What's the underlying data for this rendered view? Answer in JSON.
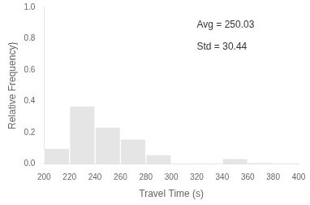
{
  "chart_data": {
    "type": "histogram",
    "bins": [
      200,
      220,
      240,
      260,
      280,
      300,
      320,
      340,
      360,
      380,
      400
    ],
    "values": [
      0.1,
      0.37,
      0.235,
      0.16,
      0.06,
      0.004,
      0.004,
      0.035,
      0.008,
      0.0
    ],
    "xlabel": "Travel Time (s)",
    "ylabel": "Relative Frequency}",
    "xlim": [
      200,
      400
    ],
    "ylim": [
      0,
      1.0
    ],
    "xticks": [
      200,
      220,
      240,
      260,
      280,
      300,
      320,
      340,
      360,
      380,
      400
    ],
    "yticks": [
      {
        "value": 0.0,
        "label": "0.0"
      },
      0.2,
      0.4,
      0.6,
      0.8,
      {
        "value": 1.0,
        "label": "1.0"
      }
    ],
    "annotations": [
      "Avg = 250.03",
      "Std = 30.44"
    ],
    "grid": false
  }
}
